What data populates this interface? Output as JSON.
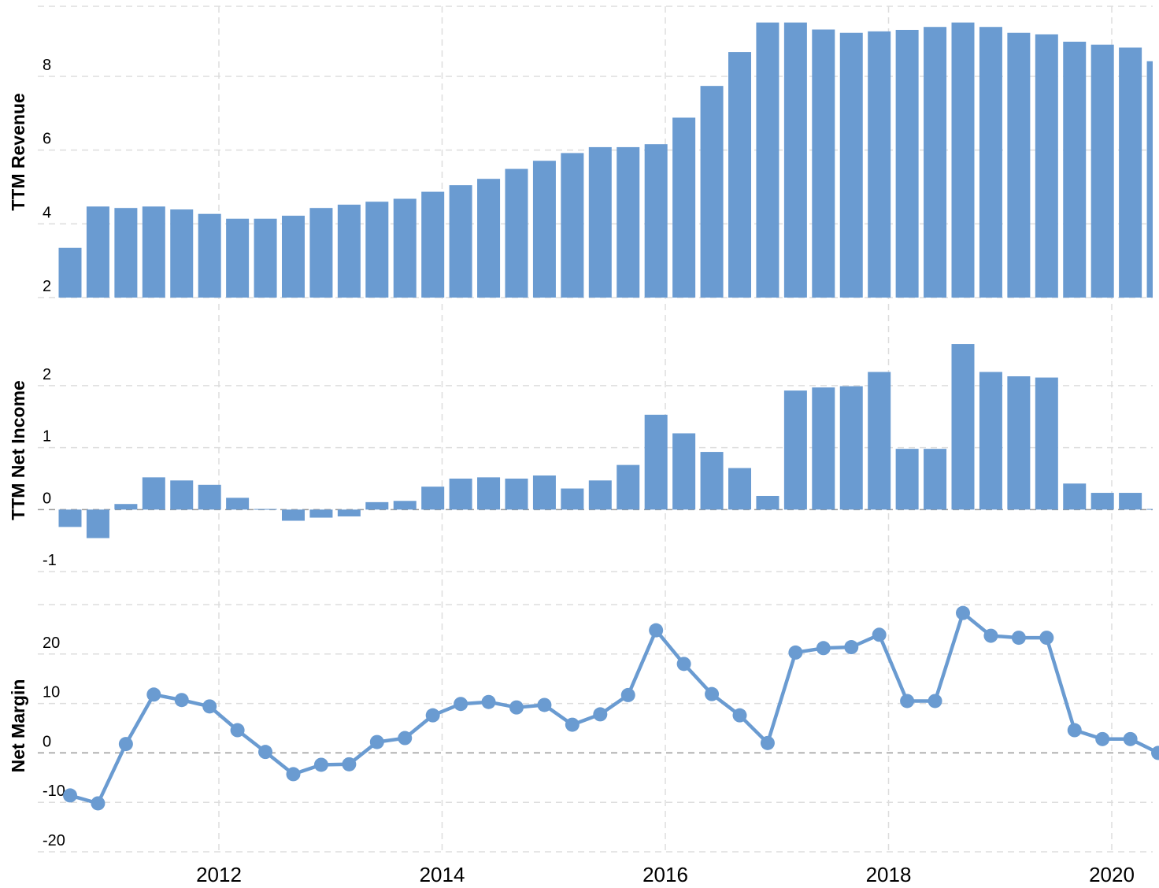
{
  "chart_data": [
    {
      "type": "bar",
      "ylabel": "TTM Revenue",
      "yticks": [
        2,
        4,
        6,
        8
      ],
      "ylim": [
        2,
        9.9
      ],
      "grid": true,
      "color": "#6a9bd1",
      "x": [
        "2010-09",
        "2010-12",
        "2011-03",
        "2011-06",
        "2011-09",
        "2011-12",
        "2012-03",
        "2012-06",
        "2012-09",
        "2012-12",
        "2013-03",
        "2013-06",
        "2013-09",
        "2013-12",
        "2014-03",
        "2014-06",
        "2014-09",
        "2014-12",
        "2015-03",
        "2015-06",
        "2015-09",
        "2015-12",
        "2016-03",
        "2016-06",
        "2016-09",
        "2016-12",
        "2017-03",
        "2017-06",
        "2017-09",
        "2017-12",
        "2018-03",
        "2018-06",
        "2018-09",
        "2018-12",
        "2019-03",
        "2019-06",
        "2019-09",
        "2019-12",
        "2020-03",
        "2020-06"
      ],
      "values": [
        3.35,
        4.47,
        4.43,
        4.47,
        4.39,
        4.27,
        4.14,
        4.14,
        4.22,
        4.43,
        4.52,
        4.6,
        4.68,
        4.87,
        5.05,
        5.22,
        5.49,
        5.71,
        5.92,
        6.08,
        6.08,
        6.16,
        6.88,
        7.74,
        8.66,
        9.46,
        9.46,
        9.27,
        9.18,
        9.22,
        9.26,
        9.34,
        9.46,
        9.34,
        9.18,
        9.14,
        8.94,
        8.86,
        8.78,
        8.41
      ]
    },
    {
      "type": "bar",
      "ylabel": "TTM Net Income",
      "yticks": [
        -1,
        0,
        1,
        2
      ],
      "ylim": [
        -1.05,
        2.95
      ],
      "grid": true,
      "color": "#6a9bd1",
      "x": [
        "2010-09",
        "2010-12",
        "2011-03",
        "2011-06",
        "2011-09",
        "2011-12",
        "2012-03",
        "2012-06",
        "2012-09",
        "2012-12",
        "2013-03",
        "2013-06",
        "2013-09",
        "2013-12",
        "2014-03",
        "2014-06",
        "2014-09",
        "2014-12",
        "2015-03",
        "2015-06",
        "2015-09",
        "2015-12",
        "2016-03",
        "2016-06",
        "2016-09",
        "2016-12",
        "2017-03",
        "2017-06",
        "2017-09",
        "2017-12",
        "2018-03",
        "2018-06",
        "2018-09",
        "2018-12",
        "2019-03",
        "2019-06",
        "2019-09",
        "2019-12",
        "2020-03",
        "2020-06"
      ],
      "values": [
        -0.28,
        -0.46,
        0.09,
        0.52,
        0.47,
        0.4,
        0.19,
        0.01,
        -0.18,
        -0.13,
        -0.11,
        0.12,
        0.14,
        0.37,
        0.5,
        0.52,
        0.5,
        0.55,
        0.34,
        0.47,
        0.72,
        1.53,
        1.23,
        0.93,
        0.67,
        0.22,
        1.92,
        1.97,
        1.99,
        2.22,
        0.98,
        0.98,
        2.67,
        2.22,
        2.15,
        2.13,
        0.42,
        0.27,
        0.27,
        0.01
      ]
    },
    {
      "type": "line",
      "ylabel": "Net Margin",
      "yticks": [
        -20,
        -10,
        0,
        10,
        20
      ],
      "ylim": [
        -20,
        30
      ],
      "grid": true,
      "color": "#6a9bd1",
      "x": [
        "2010-09",
        "2010-12",
        "2011-03",
        "2011-06",
        "2011-09",
        "2011-12",
        "2012-03",
        "2012-06",
        "2012-09",
        "2012-12",
        "2013-03",
        "2013-06",
        "2013-09",
        "2013-12",
        "2014-03",
        "2014-06",
        "2014-09",
        "2014-12",
        "2015-03",
        "2015-06",
        "2015-09",
        "2015-12",
        "2016-03",
        "2016-06",
        "2016-09",
        "2016-12",
        "2017-03",
        "2017-06",
        "2017-09",
        "2017-12",
        "2018-03",
        "2018-06",
        "2018-09",
        "2018-12",
        "2019-03",
        "2019-06",
        "2019-09",
        "2019-12",
        "2020-03",
        "2020-06"
      ],
      "values": [
        -8.6,
        -10.2,
        1.8,
        11.8,
        10.7,
        9.4,
        4.6,
        0.2,
        -4.3,
        -2.4,
        -2.3,
        2.2,
        3.0,
        7.6,
        9.9,
        10.3,
        9.2,
        9.7,
        5.7,
        7.8,
        11.7,
        24.8,
        18.0,
        11.9,
        7.6,
        2.0,
        20.3,
        21.2,
        21.4,
        23.9,
        10.5,
        10.5,
        28.3,
        23.7,
        23.3,
        23.3,
        4.6,
        2.8,
        2.8,
        0.0
      ]
    }
  ],
  "x_axis": {
    "ticks": [
      "2012",
      "2014",
      "2016",
      "2018",
      "2020"
    ]
  }
}
